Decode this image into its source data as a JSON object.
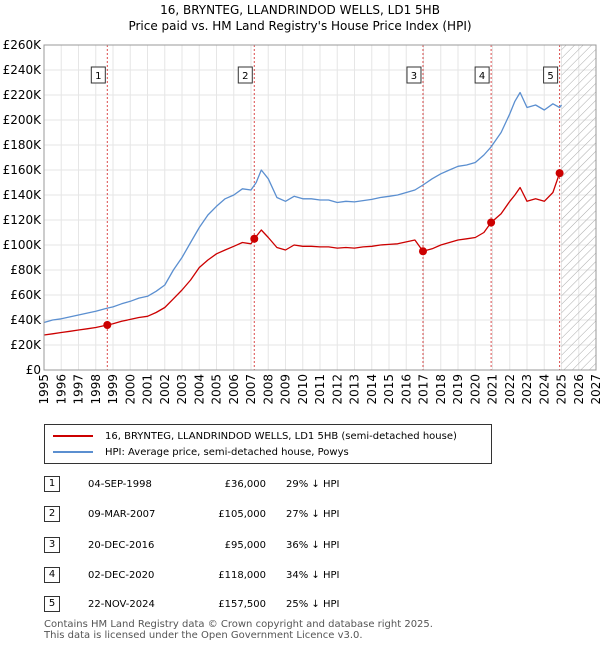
{
  "title": {
    "line1": "16, BRYNTEG, LLANDRINDOD WELLS, LD1 5HB",
    "line2": "Price paid vs. HM Land Registry's House Price Index (HPI)"
  },
  "colors": {
    "price_line": "#cc0000",
    "hpi_line": "#5b8fd0",
    "grid": "#e6e6e6",
    "event_line": "#cc0000",
    "hatch": "#999999"
  },
  "legend": {
    "price_label": "16, BRYNTEG, LLANDRINDOD WELLS, LD1 5HB (semi-detached house)",
    "hpi_label": "HPI: Average price, semi-detached house, Powys"
  },
  "sales": [
    {
      "num": "1",
      "date": "04-SEP-1998",
      "price": "£36,000",
      "hpi": "29% ↓ HPI"
    },
    {
      "num": "2",
      "date": "09-MAR-2007",
      "price": "£105,000",
      "hpi": "27% ↓ HPI"
    },
    {
      "num": "3",
      "date": "20-DEC-2016",
      "price": "£95,000",
      "hpi": "36% ↓ HPI"
    },
    {
      "num": "4",
      "date": "02-DEC-2020",
      "price": "£118,000",
      "hpi": "34% ↓ HPI"
    },
    {
      "num": "5",
      "date": "22-NOV-2024",
      "price": "£157,500",
      "hpi": "25% ↓ HPI"
    }
  ],
  "footer": {
    "line1": "Contains HM Land Registry data © Crown copyright and database right 2025.",
    "line2": "This data is licensed under the Open Government Licence v3.0."
  },
  "chart_data": {
    "type": "line",
    "title": "16, BRYNTEG, LLANDRINDOD WELLS, LD1 5HB — Price paid vs. HM Land Registry's House Price Index (HPI)",
    "xlabel": "",
    "ylabel": "",
    "xlim": [
      1995,
      2027
    ],
    "ylim": [
      0,
      260000
    ],
    "x_ticks": [
      1995,
      1996,
      1997,
      1998,
      1999,
      2000,
      2001,
      2002,
      2003,
      2004,
      2005,
      2006,
      2007,
      2008,
      2009,
      2010,
      2011,
      2012,
      2013,
      2014,
      2015,
      2016,
      2017,
      2018,
      2019,
      2020,
      2021,
      2022,
      2023,
      2024,
      2025,
      2026,
      2027
    ],
    "y_ticks": [
      0,
      20000,
      40000,
      60000,
      80000,
      100000,
      120000,
      140000,
      160000,
      180000,
      200000,
      220000,
      240000,
      260000
    ],
    "y_tick_labels": [
      "£0",
      "£20K",
      "£40K",
      "£60K",
      "£80K",
      "£100K",
      "£120K",
      "£140K",
      "£160K",
      "£180K",
      "£200K",
      "£220K",
      "£240K",
      "£260K"
    ],
    "grid": true,
    "legend": "bottom",
    "hatched_from": 2025.0,
    "series": [
      {
        "name": "HPI: Average price, semi-detached house, Powys",
        "x": [
          1995,
          1995.5,
          1996,
          1996.5,
          1997,
          1997.5,
          1998,
          1998.67,
          1999,
          1999.5,
          2000,
          2000.5,
          2001,
          2001.5,
          2002,
          2002.5,
          2003,
          2003.5,
          2004,
          2004.5,
          2005,
          2005.5,
          2006,
          2006.5,
          2007,
          2007.3,
          2007.6,
          2008,
          2008.5,
          2009,
          2009.5,
          2010,
          2010.5,
          2011,
          2011.5,
          2012,
          2012.5,
          2013,
          2013.5,
          2014,
          2014.5,
          2015,
          2015.5,
          2016,
          2016.5,
          2016.97,
          2017.5,
          2018,
          2018.5,
          2019,
          2019.5,
          2020,
          2020.5,
          2020.92,
          2021.5,
          2022,
          2022.3,
          2022.6,
          2023,
          2023.5,
          2024,
          2024.5,
          2024.89,
          2025.0
        ],
        "values": [
          38000,
          40000,
          41000,
          42500,
          44000,
          45500,
          47000,
          49500,
          50500,
          53000,
          55000,
          57500,
          59000,
          63000,
          68000,
          80000,
          90000,
          102000,
          114000,
          124000,
          131000,
          137000,
          140000,
          145000,
          144000,
          150000,
          160000,
          153000,
          138000,
          135000,
          139000,
          137000,
          137000,
          136000,
          136000,
          134000,
          135000,
          134500,
          135500,
          136500,
          138000,
          139000,
          140000,
          142000,
          144000,
          148000,
          153000,
          157000,
          160000,
          163000,
          164000,
          166000,
          172000,
          178500,
          190000,
          205000,
          215000,
          222000,
          210000,
          212000,
          208000,
          213000,
          210000,
          212000
        ]
      },
      {
        "name": "16, BRYNTEG, LLANDRINDOD WELLS, LD1 5HB (semi-detached house)",
        "x": [
          1995,
          1995.5,
          1996,
          1996.5,
          1997,
          1997.5,
          1998,
          1998.67,
          1999,
          1999.5,
          2000,
          2000.5,
          2001,
          2001.5,
          2002,
          2002.5,
          2003,
          2003.5,
          2004,
          2004.5,
          2005,
          2005.5,
          2006,
          2006.5,
          2007,
          2007.19,
          2007.6,
          2008,
          2008.5,
          2009,
          2009.5,
          2010,
          2010.5,
          2011,
          2011.5,
          2012,
          2012.5,
          2013,
          2013.5,
          2014,
          2014.5,
          2015,
          2015.5,
          2016,
          2016.5,
          2016.97,
          2017.5,
          2018,
          2018.5,
          2019,
          2019.5,
          2020,
          2020.5,
          2020.92,
          2021.5,
          2022,
          2022.3,
          2022.6,
          2023,
          2023.5,
          2024,
          2024.5,
          2024.89,
          2025.0
        ],
        "values": [
          28000,
          29000,
          30000,
          31000,
          32000,
          33000,
          34000,
          36000,
          37000,
          39000,
          40500,
          42000,
          43000,
          46000,
          50000,
          57000,
          64000,
          72000,
          82000,
          88000,
          93000,
          96000,
          99000,
          102000,
          101000,
          105000,
          112000,
          106000,
          98000,
          96000,
          100000,
          99000,
          99000,
          98500,
          98500,
          97500,
          98000,
          97500,
          98500,
          99000,
          100000,
          100500,
          101000,
          102500,
          104000,
          95000,
          97000,
          100000,
          102000,
          104000,
          105000,
          106000,
          110000,
          118000,
          125000,
          135000,
          140000,
          146000,
          135000,
          137000,
          135000,
          142000,
          157500,
          159000
        ]
      }
    ],
    "events": [
      {
        "label": "1",
        "x": 1998.67,
        "price": 36000
      },
      {
        "label": "2",
        "x": 2007.19,
        "price": 105000
      },
      {
        "label": "3",
        "x": 2016.97,
        "price": 95000
      },
      {
        "label": "4",
        "x": 2020.92,
        "price": 118000
      },
      {
        "label": "5",
        "x": 2024.89,
        "price": 157500
      }
    ]
  }
}
